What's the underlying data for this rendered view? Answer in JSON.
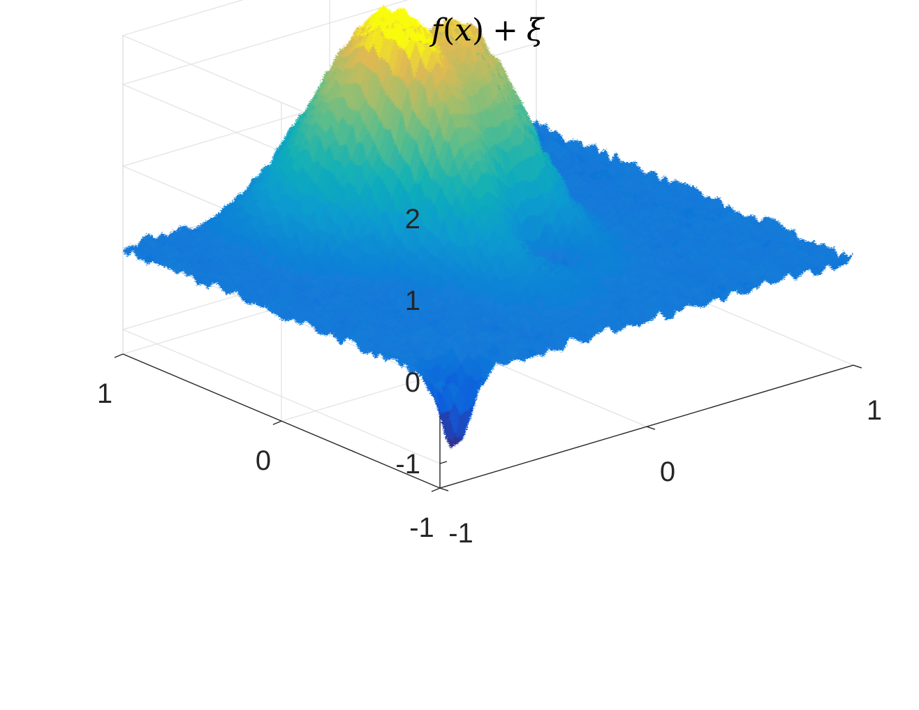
{
  "chart_data": {
    "type": "surface",
    "title": "f(x) + ξ",
    "title_parts": {
      "f": "f",
      "open": "(",
      "x": "x",
      "close": ")",
      "plus": "+",
      "xi": "ξ"
    },
    "xlabel": "",
    "ylabel": "",
    "zlabel": "",
    "xlim": [
      -1,
      1
    ],
    "ylim": [
      -1,
      1
    ],
    "zlim": [
      -1.3,
      2.6
    ],
    "x_ticks": [
      -1,
      0,
      1
    ],
    "y_ticks": [
      -1,
      0,
      1
    ],
    "z_ticks": [
      -1,
      0,
      1,
      2
    ],
    "x_tick_labels": [
      "-1",
      "0",
      "1"
    ],
    "y_tick_labels": [
      "-1",
      "0",
      "1"
    ],
    "z_tick_labels": [
      "-1",
      "0",
      "1",
      "2"
    ],
    "grid": true,
    "colormap": "parula",
    "noise_amplitude": 0.08,
    "components": [
      {
        "description": "main peak",
        "x": -0.12,
        "y": 0.38,
        "height": 2.45,
        "sigma_x": 0.13,
        "sigma_y": 0.42
      },
      {
        "description": "second peak",
        "x": 0.2,
        "y": 0.42,
        "height": 2.2,
        "sigma_x": 0.13,
        "sigma_y": 0.38
      },
      {
        "description": "side bump",
        "x": -0.38,
        "y": 0.55,
        "height": 1.05,
        "sigma_x": 0.14,
        "sigma_y": 0.25
      },
      {
        "description": "dip",
        "x": 0.08,
        "y": -0.22,
        "height": -0.65,
        "sigma_x": 0.12,
        "sigma_y": 0.12
      },
      {
        "description": "corner dip",
        "x": -0.85,
        "y": -0.9,
        "height": -1.0,
        "sigma_x": 0.06,
        "sigma_y": 0.06
      }
    ],
    "annotations": []
  }
}
